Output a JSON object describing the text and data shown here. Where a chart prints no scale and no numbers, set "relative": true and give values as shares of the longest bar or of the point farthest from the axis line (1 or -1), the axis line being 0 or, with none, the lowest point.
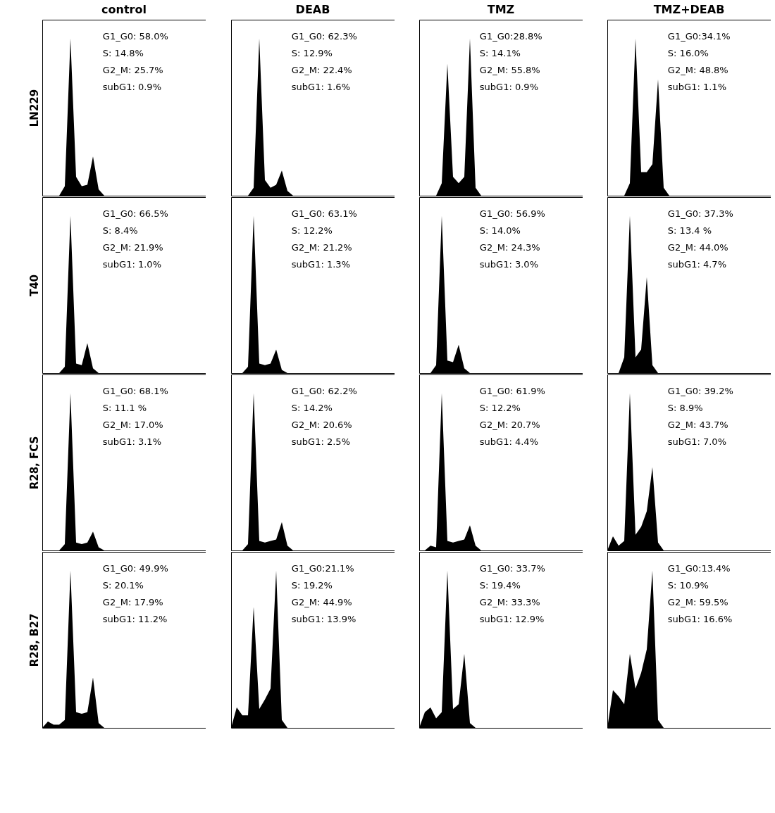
{
  "chart_data": [
    {
      "type": "area",
      "relative": true,
      "title": "control",
      "ylabel": "LN229",
      "color": "#000000",
      "categories": [
        null,
        null,
        null,
        null,
        null,
        null,
        null,
        null,
        null,
        null,
        null,
        null,
        null,
        null,
        null,
        null,
        null,
        null,
        null,
        null,
        null,
        null,
        null,
        null,
        null,
        null,
        null,
        null,
        null,
        null
      ],
      "values": [
        0,
        0,
        0,
        0,
        0.06,
        1,
        0.12,
        0.06,
        0.07,
        0.25,
        0.04,
        0,
        0,
        0,
        0,
        0,
        0,
        0,
        0,
        0,
        0,
        0,
        0,
        0,
        0,
        0,
        0,
        0,
        0,
        0
      ],
      "annotations": [
        "G1_G0: 58.0%",
        "S: 14.8%",
        "G2_M: 25.7%",
        "subG1: 0.9%"
      ]
    },
    {
      "type": "area",
      "relative": true,
      "title": "DEAB",
      "color": "#000000",
      "categories": [
        null,
        null,
        null,
        null,
        null,
        null,
        null,
        null,
        null,
        null,
        null,
        null,
        null,
        null,
        null,
        null,
        null,
        null,
        null,
        null,
        null,
        null,
        null,
        null,
        null,
        null,
        null,
        null,
        null,
        null
      ],
      "values": [
        0,
        0,
        0,
        0,
        0.05,
        1,
        0.1,
        0.05,
        0.07,
        0.16,
        0.03,
        0,
        0,
        0,
        0,
        0,
        0,
        0,
        0,
        0,
        0,
        0,
        0,
        0,
        0,
        0,
        0,
        0,
        0,
        0
      ],
      "annotations": [
        "G1_G0: 62.3%",
        "S: 12.9%",
        "G2_M: 22.4%",
        "subG1: 1.6%"
      ]
    },
    {
      "type": "area",
      "relative": true,
      "title": "TMZ",
      "color": "#000000",
      "categories": [
        null,
        null,
        null,
        null,
        null,
        null,
        null,
        null,
        null,
        null,
        null,
        null,
        null,
        null,
        null,
        null,
        null,
        null,
        null,
        null,
        null,
        null,
        null,
        null,
        null,
        null,
        null,
        null,
        null,
        null
      ],
      "values": [
        0,
        0,
        0,
        0,
        0.08,
        0.84,
        0.12,
        0.08,
        0.12,
        1,
        0.05,
        0,
        0,
        0,
        0,
        0,
        0,
        0,
        0,
        0,
        0,
        0,
        0,
        0,
        0,
        0,
        0,
        0,
        0,
        0
      ],
      "annotations": [
        "G1_G0:28.8%",
        "S: 14.1%",
        "G2_M: 55.8%",
        "subG1: 0.9%"
      ]
    },
    {
      "type": "area",
      "relative": true,
      "title": "TMZ+DEAB",
      "color": "#000000",
      "categories": [
        null,
        null,
        null,
        null,
        null,
        null,
        null,
        null,
        null,
        null,
        null,
        null,
        null,
        null,
        null,
        null,
        null,
        null,
        null,
        null,
        null,
        null,
        null,
        null,
        null,
        null,
        null,
        null,
        null,
        null
      ],
      "values": [
        0,
        0,
        0,
        0,
        0.08,
        1,
        0.15,
        0.15,
        0.2,
        0.74,
        0.05,
        0,
        0,
        0,
        0,
        0,
        0,
        0,
        0,
        0,
        0,
        0,
        0,
        0,
        0,
        0,
        0,
        0,
        0,
        0
      ],
      "annotations": [
        "G1_G0:34.1%",
        "S: 16.0%",
        "G2_M: 48.8%",
        "subG1: 1.1%"
      ]
    },
    {
      "type": "area",
      "relative": true,
      "ylabel": "T40",
      "color": "#000000",
      "categories": [
        null,
        null,
        null,
        null,
        null,
        null,
        null,
        null,
        null,
        null,
        null,
        null,
        null,
        null,
        null,
        null,
        null,
        null,
        null,
        null,
        null,
        null,
        null,
        null,
        null,
        null,
        null,
        null,
        null,
        null
      ],
      "values": [
        0,
        0,
        0,
        0,
        0.04,
        1,
        0.06,
        0.05,
        0.19,
        0.03,
        0,
        0,
        0,
        0,
        0,
        0,
        0,
        0,
        0,
        0,
        0,
        0,
        0,
        0,
        0,
        0,
        0,
        0,
        0,
        0
      ],
      "annotations": [
        "G1_G0: 66.5%",
        "S: 8.4%",
        "G2_M: 21.9%",
        "subG1: 1.0%"
      ]
    },
    {
      "type": "area",
      "relative": true,
      "color": "#000000",
      "categories": [
        null,
        null,
        null,
        null,
        null,
        null,
        null,
        null,
        null,
        null,
        null,
        null,
        null,
        null,
        null,
        null,
        null,
        null,
        null,
        null,
        null,
        null,
        null,
        null,
        null,
        null,
        null,
        null,
        null,
        null
      ],
      "values": [
        0,
        0,
        0,
        0.04,
        1,
        0.06,
        0.05,
        0.06,
        0.15,
        0.02,
        0,
        0,
        0,
        0,
        0,
        0,
        0,
        0,
        0,
        0,
        0,
        0,
        0,
        0,
        0,
        0,
        0,
        0,
        0,
        0
      ],
      "annotations": [
        "G1_G0: 63.1%",
        "S: 12.2%",
        "G2_M: 21.2%",
        "subG1: 1.3%"
      ]
    },
    {
      "type": "area",
      "relative": true,
      "color": "#000000",
      "categories": [
        null,
        null,
        null,
        null,
        null,
        null,
        null,
        null,
        null,
        null,
        null,
        null,
        null,
        null,
        null,
        null,
        null,
        null,
        null,
        null,
        null,
        null,
        null,
        null,
        null,
        null,
        null,
        null,
        null,
        null
      ],
      "values": [
        0,
        0,
        0,
        0.05,
        1,
        0.08,
        0.07,
        0.18,
        0.03,
        0,
        0,
        0,
        0,
        0,
        0,
        0,
        0,
        0,
        0,
        0,
        0,
        0,
        0,
        0,
        0,
        0,
        0,
        0,
        0,
        0
      ],
      "annotations": [
        "G1_G0: 56.9%",
        "S: 14.0%",
        "G2_M: 24.3%",
        "subG1: 3.0%"
      ]
    },
    {
      "type": "area",
      "relative": true,
      "color": "#000000",
      "categories": [
        null,
        null,
        null,
        null,
        null,
        null,
        null,
        null,
        null,
        null,
        null,
        null,
        null,
        null,
        null,
        null,
        null,
        null,
        null,
        null,
        null,
        null,
        null,
        null,
        null,
        null,
        null,
        null,
        null,
        null
      ],
      "values": [
        0,
        0,
        0,
        0.1,
        1,
        0.1,
        0.15,
        0.61,
        0.05,
        0,
        0,
        0,
        0,
        0,
        0,
        0,
        0,
        0,
        0,
        0,
        0,
        0,
        0,
        0,
        0,
        0,
        0,
        0,
        0,
        0
      ],
      "annotations": [
        "G1_G0: 37.3%",
        "S: 13.4 %",
        "G2_M: 44.0%",
        "subG1: 4.7%"
      ]
    },
    {
      "type": "area",
      "relative": true,
      "ylabel": "R28, FCS",
      "color": "#000000",
      "categories": [
        null,
        null,
        null,
        null,
        null,
        null,
        null,
        null,
        null,
        null,
        null,
        null,
        null,
        null,
        null,
        null,
        null,
        null,
        null,
        null,
        null,
        null,
        null,
        null,
        null,
        null,
        null,
        null,
        null,
        null
      ],
      "values": [
        0,
        0,
        0,
        0,
        0.04,
        1,
        0.05,
        0.04,
        0.05,
        0.12,
        0.02,
        0,
        0,
        0,
        0,
        0,
        0,
        0,
        0,
        0,
        0,
        0,
        0,
        0,
        0,
        0,
        0,
        0,
        0,
        0
      ],
      "annotations": [
        "G1_G0: 68.1%",
        "S: 11.1 %",
        "G2_M: 17.0%",
        "subG1: 3.1%"
      ]
    },
    {
      "type": "area",
      "relative": true,
      "color": "#000000",
      "categories": [
        null,
        null,
        null,
        null,
        null,
        null,
        null,
        null,
        null,
        null,
        null,
        null,
        null,
        null,
        null,
        null,
        null,
        null,
        null,
        null,
        null,
        null,
        null,
        null,
        null,
        null,
        null,
        null,
        null,
        null
      ],
      "values": [
        0,
        0,
        0,
        0.04,
        1,
        0.06,
        0.05,
        0.06,
        0.07,
        0.18,
        0.03,
        0,
        0,
        0,
        0,
        0,
        0,
        0,
        0,
        0,
        0,
        0,
        0,
        0,
        0,
        0,
        0,
        0,
        0,
        0
      ],
      "annotations": [
        "G1_G0: 62.2%",
        "S: 14.2%",
        "G2_M: 20.6%",
        "subG1: 2.5%"
      ]
    },
    {
      "type": "area",
      "relative": true,
      "color": "#000000",
      "categories": [
        null,
        null,
        null,
        null,
        null,
        null,
        null,
        null,
        null,
        null,
        null,
        null,
        null,
        null,
        null,
        null,
        null,
        null,
        null,
        null,
        null,
        null,
        null,
        null,
        null,
        null,
        null,
        null,
        null,
        null
      ],
      "values": [
        0,
        0,
        0.03,
        0.02,
        1,
        0.06,
        0.05,
        0.06,
        0.07,
        0.16,
        0.03,
        0,
        0,
        0,
        0,
        0,
        0,
        0,
        0,
        0,
        0,
        0,
        0,
        0,
        0,
        0,
        0,
        0,
        0,
        0
      ],
      "annotations": [
        "G1_G0: 61.9%",
        "S: 12.2%",
        "G2_M: 20.7%",
        "subG1: 4.4%"
      ]
    },
    {
      "type": "area",
      "relative": true,
      "color": "#000000",
      "categories": [
        null,
        null,
        null,
        null,
        null,
        null,
        null,
        null,
        null,
        null,
        null,
        null,
        null,
        null,
        null,
        null,
        null,
        null,
        null,
        null,
        null,
        null,
        null,
        null,
        null,
        null,
        null,
        null,
        null,
        null
      ],
      "values": [
        0,
        0.09,
        0.03,
        0.06,
        1,
        0.1,
        0.15,
        0.25,
        0.53,
        0.05,
        0,
        0,
        0,
        0,
        0,
        0,
        0,
        0,
        0,
        0,
        0,
        0,
        0,
        0,
        0,
        0,
        0,
        0,
        0,
        0
      ],
      "annotations": [
        "G1_G0: 39.2%",
        "S: 8.9%",
        "G2_M: 43.7%",
        "subG1: 7.0%"
      ]
    },
    {
      "type": "area",
      "relative": true,
      "ylabel": "R28, B27",
      "color": "#000000",
      "categories": [
        null,
        null,
        null,
        null,
        null,
        null,
        null,
        null,
        null,
        null,
        null,
        null,
        null,
        null,
        null,
        null,
        null,
        null,
        null,
        null,
        null,
        null,
        null,
        null,
        null,
        null,
        null,
        null,
        null,
        null
      ],
      "values": [
        0,
        0.04,
        0.02,
        0.02,
        0.05,
        1,
        0.1,
        0.09,
        0.1,
        0.32,
        0.03,
        0,
        0,
        0,
        0,
        0,
        0,
        0,
        0,
        0,
        0,
        0,
        0,
        0,
        0,
        0,
        0,
        0,
        0,
        0
      ],
      "annotations": [
        "G1_G0: 49.9%",
        "S: 20.1%",
        "G2_M: 17.9%",
        "subG1: 11.2%"
      ]
    },
    {
      "type": "area",
      "relative": true,
      "color": "#000000",
      "categories": [
        null,
        null,
        null,
        null,
        null,
        null,
        null,
        null,
        null,
        null,
        null,
        null,
        null,
        null,
        null,
        null,
        null,
        null,
        null,
        null,
        null,
        null,
        null,
        null,
        null,
        null,
        null,
        null,
        null,
        null
      ],
      "values": [
        0,
        0.13,
        0.08,
        0.08,
        0.77,
        0.12,
        0.18,
        0.25,
        1,
        0.05,
        0,
        0,
        0,
        0,
        0,
        0,
        0,
        0,
        0,
        0,
        0,
        0,
        0,
        0,
        0,
        0,
        0,
        0,
        0,
        0
      ],
      "annotations": [
        "G1_G0:21.1%",
        "S: 19.2%",
        "G2_M: 44.9%",
        "subG1: 13.9%"
      ]
    },
    {
      "type": "area",
      "relative": true,
      "color": "#000000",
      "categories": [
        null,
        null,
        null,
        null,
        null,
        null,
        null,
        null,
        null,
        null,
        null,
        null,
        null,
        null,
        null,
        null,
        null,
        null,
        null,
        null,
        null,
        null,
        null,
        null,
        null,
        null,
        null,
        null,
        null,
        null
      ],
      "values": [
        0,
        0.1,
        0.13,
        0.06,
        0.1,
        1,
        0.12,
        0.15,
        0.47,
        0.03,
        0,
        0,
        0,
        0,
        0,
        0,
        0,
        0,
        0,
        0,
        0,
        0,
        0,
        0,
        0,
        0,
        0,
        0,
        0,
        0
      ],
      "annotations": [
        "G1_G0: 33.7%",
        "S: 19.4%",
        "G2_M: 33.3%",
        "subG1: 12.9%"
      ]
    },
    {
      "type": "area",
      "relative": true,
      "color": "#000000",
      "categories": [
        null,
        null,
        null,
        null,
        null,
        null,
        null,
        null,
        null,
        null,
        null,
        null,
        null,
        null,
        null,
        null,
        null,
        null,
        null,
        null,
        null,
        null,
        null,
        null,
        null,
        null,
        null,
        null,
        null,
        null
      ],
      "values": [
        0,
        0.24,
        0.2,
        0.15,
        0.47,
        0.25,
        0.35,
        0.5,
        1,
        0.05,
        0,
        0,
        0,
        0,
        0,
        0,
        0,
        0,
        0,
        0,
        0,
        0,
        0,
        0,
        0,
        0,
        0,
        0,
        0,
        0
      ],
      "annotations": [
        "G1_G0:13.4%",
        "S: 10.9%",
        "G2_M: 59.5%",
        "subG1: 16.6%"
      ]
    }
  ]
}
